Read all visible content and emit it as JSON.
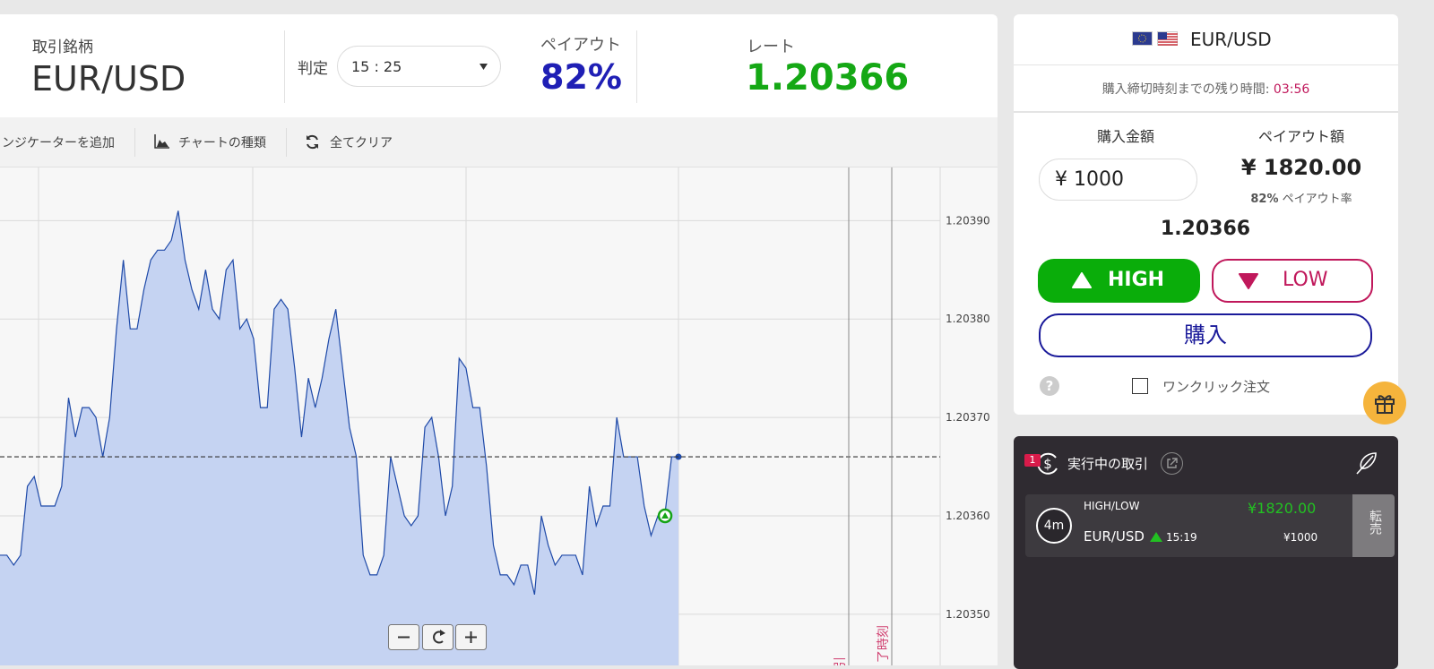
{
  "header": {
    "symbol_label": "取引銘柄",
    "symbol": "EUR/USD",
    "expiry_label": "判定",
    "expiry": "15 : 25",
    "payout_label": "ペイアウト",
    "payout": "82%",
    "rate_label": "レート",
    "rate": 1.20366
  },
  "toolbar": {
    "indicator": "インジケーターを追加",
    "chart_type": "チャートの種類",
    "clear": "全てクリア"
  },
  "chart_data": {
    "type": "line",
    "ylim": [
      1.203448,
      1.203954
    ],
    "yticks": [
      {
        "value": 1.2039,
        "label": "1.20390"
      },
      {
        "value": 1.2038,
        "label": "1.20380"
      },
      {
        "value": 1.2037,
        "label": "1.20370"
      },
      {
        "value": 1.2036,
        "label": "1.20360"
      },
      {
        "value": 1.2035,
        "label": "1.20350"
      }
    ],
    "grid": true,
    "current": 1.20366,
    "entry": 1.2036,
    "deadline_labels": [
      "引",
      "了時刻"
    ],
    "series": [
      {
        "color": "#1f4aa8",
        "values": [
          1.20356,
          1.20356,
          1.20355,
          1.20356,
          1.20363,
          1.20364,
          1.20361,
          1.20361,
          1.20361,
          1.20363,
          1.20372,
          1.20368,
          1.20371,
          1.20371,
          1.2037,
          1.20366,
          1.2037,
          1.20379,
          1.20386,
          1.20379,
          1.20379,
          1.20383,
          1.20386,
          1.20387,
          1.20387,
          1.20388,
          1.20391,
          1.20386,
          1.20383,
          1.20381,
          1.20385,
          1.20381,
          1.2038,
          1.20385,
          1.20386,
          1.20379,
          1.2038,
          1.20378,
          1.20371,
          1.20371,
          1.20381,
          1.20382,
          1.20381,
          1.20375,
          1.20368,
          1.20374,
          1.20371,
          1.20374,
          1.20378,
          1.20381,
          1.20375,
          1.20369,
          1.20366,
          1.20356,
          1.20354,
          1.20354,
          1.20356,
          1.20366,
          1.20363,
          1.2036,
          1.20359,
          1.2036,
          1.20369,
          1.2037,
          1.20366,
          1.2036,
          1.20363,
          1.20376,
          1.20375,
          1.20371,
          1.20371,
          1.20365,
          1.20357,
          1.20354,
          1.20354,
          1.20353,
          1.20355,
          1.20355,
          1.20352,
          1.2036,
          1.20357,
          1.20355,
          1.20356,
          1.20356,
          1.20356,
          1.20354,
          1.20363,
          1.20359,
          1.20361,
          1.20361,
          1.2037,
          1.20366,
          1.20366,
          1.20366,
          1.20361,
          1.20358,
          1.2036,
          1.2036,
          1.20366,
          1.20366
        ]
      }
    ]
  },
  "sidebar": {
    "pair": "EUR/USD",
    "remaining_label": "購入締切時刻までの残り時間:",
    "remaining": "03:56",
    "amount_label": "購入金額",
    "amount": "¥ 1000",
    "payout_amount_label": "ペイアウト額",
    "payout_amount": "¥ 1820.00",
    "payout_rate": "82%",
    "payout_rate_label": "ペイアウト率",
    "rate": 1.20366,
    "high": "HIGH",
    "low": "LOW",
    "buy": "購入",
    "help": "?",
    "one_click": "ワンクリック注文"
  },
  "trades": {
    "badge": "1",
    "title": "実行中の取引",
    "items": [
      {
        "time_left": "4m",
        "kind": "HIGH/LOW",
        "payout": "¥1820.00",
        "pair": "EUR/USD",
        "time": "15:19",
        "amount": "¥1000",
        "sell": "転売"
      }
    ]
  }
}
